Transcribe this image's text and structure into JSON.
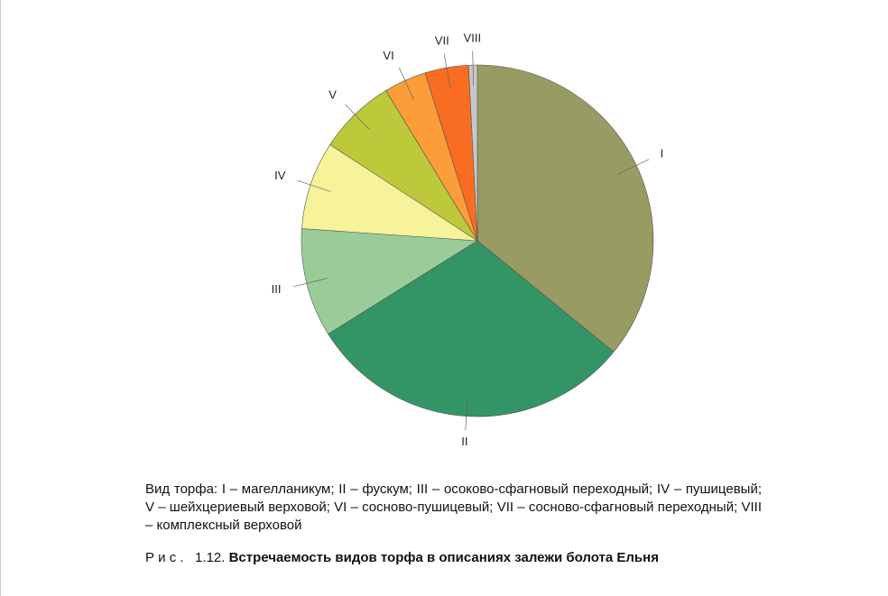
{
  "chart_data": {
    "type": "pie",
    "categories": [
      "I",
      "II",
      "III",
      "IV",
      "V",
      "VI",
      "VII",
      "VIII"
    ],
    "values": [
      35.9,
      30.2,
      10.0,
      8.1,
      7.1,
      3.9,
      4.0,
      0.8
    ],
    "colors": [
      "#989b62",
      "#339566",
      "#99cc99",
      "#f7f39b",
      "#bdc93a",
      "#fc9d3a",
      "#f86d22",
      "#c8c8c8"
    ],
    "description": "Вид торфа: I – магелланикум; II – фускум; III – осоково-сфагновый переходный; IV – пушицевый; V – шейхцериевый верховой; VI – сосново-пушицевый; VII – сосново-сфагновый переходный; VIII – комплексный верховой",
    "figure_label": "Р и с .   1.12.",
    "title": "Встречаемость видов торфа в описаниях залежи болота Ельня"
  }
}
